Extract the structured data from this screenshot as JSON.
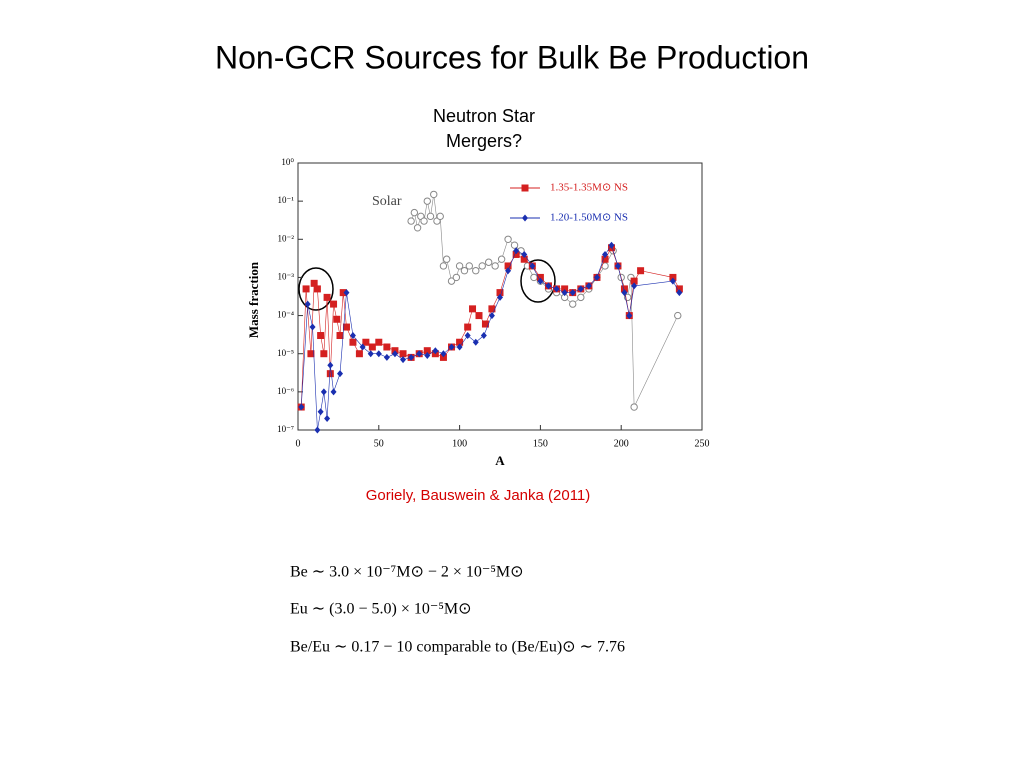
{
  "title": "Non-GCR Sources for Bulk Be Production",
  "subtitle": [
    "Neutron Star",
    "Mergers?"
  ],
  "citation": "Goriely,  Bauswein & Janka (2011)",
  "equations": [
    "Be ∼ 3.0 × 10⁻⁷M⊙ − 2 × 10⁻⁵M⊙",
    "Eu ∼ (3.0 − 5.0) × 10⁻⁵M⊙",
    "Be/Eu ∼ 0.17 − 10 comparable to (Be/Eu)⊙ ∼ 7.76"
  ],
  "chart_data": {
    "type": "scatter",
    "xlabel": "A",
    "ylabel": "Mass fraction",
    "xlim": [
      0,
      250
    ],
    "xticks": [
      0,
      50,
      100,
      150,
      200,
      250
    ],
    "ylim": [
      1e-07,
      1
    ],
    "log_y": true,
    "yticks": [
      {
        "value": 1e-07,
        "label": "10⁻⁷"
      },
      {
        "value": 1e-06,
        "label": "10⁻⁶"
      },
      {
        "value": 1e-05,
        "label": "10⁻⁵"
      },
      {
        "value": 0.0001,
        "label": "10⁻⁴"
      },
      {
        "value": 0.001,
        "label": "10⁻³"
      },
      {
        "value": 0.01,
        "label": "10⁻²"
      },
      {
        "value": 0.1,
        "label": "10⁻¹"
      },
      {
        "value": 1,
        "label": "10⁰"
      }
    ],
    "series": [
      {
        "name": "Solar",
        "color": "#888888",
        "marker": "circle",
        "x": [
          70,
          72,
          74,
          76,
          78,
          80,
          82,
          84,
          86,
          88,
          90,
          92,
          95,
          98,
          100,
          103,
          106,
          110,
          114,
          118,
          122,
          126,
          130,
          134,
          138,
          142,
          146,
          150,
          155,
          160,
          165,
          170,
          175,
          180,
          185,
          190,
          195,
          200,
          204,
          206,
          208,
          235
        ],
        "values": [
          0.03,
          0.05,
          0.02,
          0.04,
          0.03,
          0.1,
          0.04,
          0.15,
          0.03,
          0.04,
          0.002,
          0.003,
          0.0008,
          0.001,
          0.002,
          0.0015,
          0.002,
          0.0015,
          0.002,
          0.0025,
          0.002,
          0.003,
          0.01,
          0.007,
          0.005,
          0.002,
          0.001,
          0.0008,
          0.0005,
          0.0004,
          0.0003,
          0.0002,
          0.0003,
          0.0005,
          0.001,
          0.002,
          0.005,
          0.001,
          0.0003,
          0.001,
          4e-07,
          0.0001
        ]
      },
      {
        "name": "1.35-1.35M⊙ NS",
        "color": "#d42020",
        "marker": "square",
        "x": [
          2,
          5,
          8,
          10,
          12,
          14,
          16,
          18,
          20,
          22,
          24,
          26,
          28,
          30,
          34,
          38,
          42,
          46,
          50,
          55,
          60,
          65,
          70,
          75,
          80,
          85,
          90,
          95,
          100,
          105,
          108,
          112,
          116,
          120,
          125,
          130,
          135,
          140,
          145,
          150,
          155,
          160,
          165,
          170,
          175,
          180,
          185,
          190,
          194,
          198,
          202,
          205,
          208,
          212,
          232,
          236
        ],
        "values": [
          4e-07,
          0.0005,
          1e-05,
          0.0007,
          0.0005,
          3e-05,
          1e-05,
          0.0003,
          3e-06,
          0.0002,
          8e-05,
          3e-05,
          0.0004,
          5e-05,
          2e-05,
          1e-05,
          2e-05,
          1.5e-05,
          2e-05,
          1.5e-05,
          1.2e-05,
          1e-05,
          8e-06,
          1e-05,
          1.2e-05,
          1e-05,
          8e-06,
          1.5e-05,
          2e-05,
          5e-05,
          0.00015,
          0.0001,
          6e-05,
          0.00015,
          0.0004,
          0.002,
          0.004,
          0.003,
          0.002,
          0.001,
          0.0006,
          0.0005,
          0.0005,
          0.0004,
          0.0005,
          0.0006,
          0.001,
          0.003,
          0.006,
          0.002,
          0.0005,
          0.0001,
          0.0008,
          0.0015,
          0.001,
          0.0005
        ]
      },
      {
        "name": "1.20-1.50M⊙ NS",
        "color": "#1a2fb0",
        "marker": "diamond",
        "x": [
          2,
          6,
          9,
          12,
          14,
          16,
          18,
          20,
          22,
          26,
          30,
          34,
          40,
          45,
          50,
          55,
          60,
          65,
          70,
          75,
          80,
          85,
          90,
          95,
          100,
          105,
          110,
          115,
          120,
          125,
          130,
          135,
          140,
          145,
          150,
          155,
          160,
          165,
          170,
          175,
          180,
          185,
          190,
          194,
          198,
          202,
          205,
          208,
          232,
          236
        ],
        "values": [
          4e-07,
          0.0002,
          5e-05,
          1e-07,
          3e-07,
          1e-06,
          2e-07,
          5e-06,
          1e-06,
          3e-06,
          0.0004,
          3e-05,
          1.5e-05,
          1e-05,
          1e-05,
          8e-06,
          1e-05,
          7e-06,
          8e-06,
          1e-05,
          9e-06,
          1.2e-05,
          1e-05,
          1.5e-05,
          1.5e-05,
          3e-05,
          2e-05,
          3e-05,
          0.0001,
          0.0003,
          0.0015,
          0.005,
          0.004,
          0.002,
          0.0008,
          0.0006,
          0.0005,
          0.0004,
          0.0004,
          0.0005,
          0.0006,
          0.001,
          0.004,
          0.007,
          0.002,
          0.0004,
          0.0001,
          0.0006,
          0.0008,
          0.0004
        ]
      }
    ]
  }
}
